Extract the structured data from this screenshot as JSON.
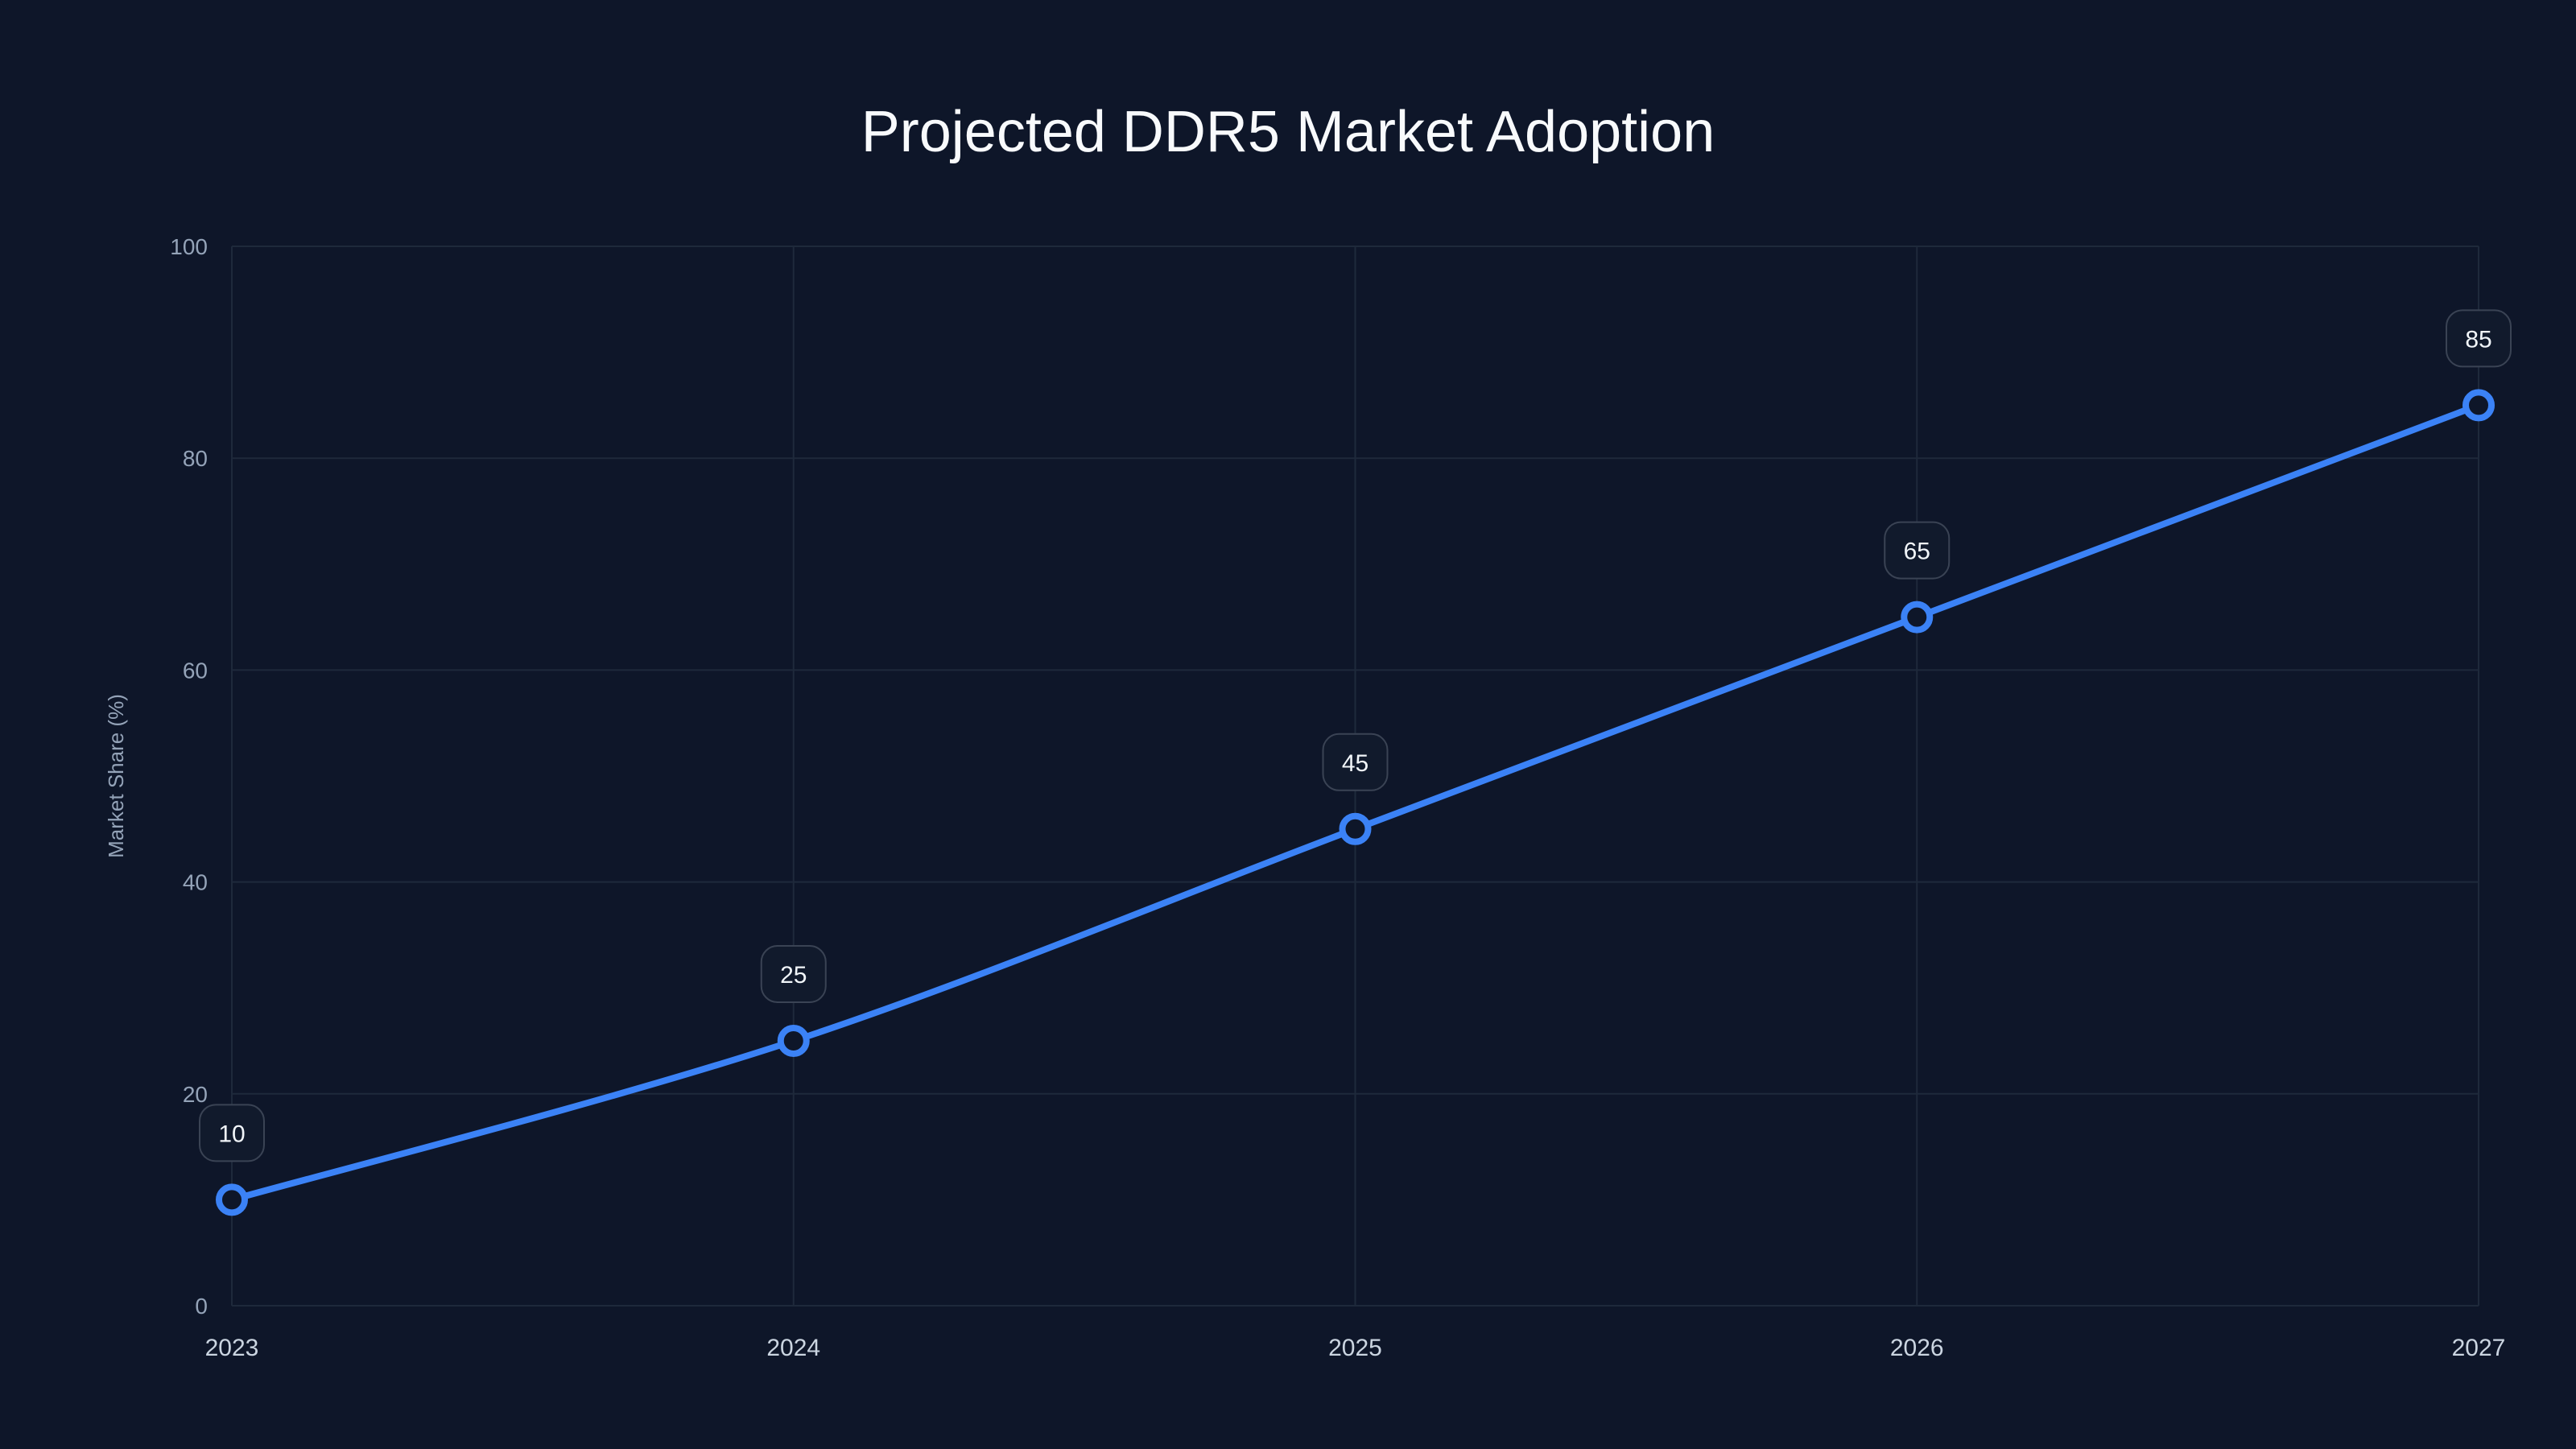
{
  "chart_data": {
    "type": "line",
    "title": "Projected DDR5 Market Adoption",
    "xlabel": "",
    "ylabel": "Market Share (%)",
    "categories": [
      "2023",
      "2024",
      "2025",
      "2026",
      "2027"
    ],
    "series": [
      {
        "values": [
          10,
          25,
          45,
          65,
          85
        ],
        "color": "#3b82f6"
      }
    ],
    "data_labels": [
      "10",
      "25",
      "45",
      "65",
      "85"
    ],
    "ylim": [
      0,
      100
    ],
    "yticks": [
      0,
      20,
      40,
      60,
      80,
      100
    ],
    "grid": true,
    "legend": "none",
    "colors": {
      "background": "#0e1629",
      "grid": "#1e293b",
      "line": "#3b82f6",
      "label_box": "#111a2c",
      "label_border": "#3a4354"
    }
  }
}
